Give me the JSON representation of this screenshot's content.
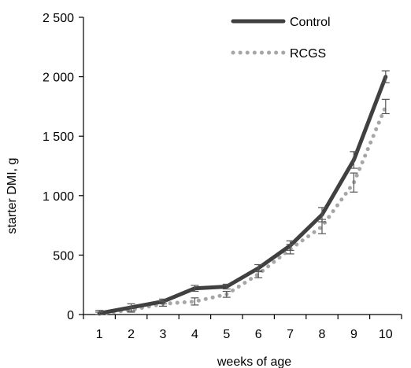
{
  "chart_data": {
    "type": "line",
    "xlabel": "weeks of age",
    "ylabel": "starter DMI, g",
    "categories": [
      "1",
      "2",
      "3",
      "4",
      "5",
      "6",
      "7",
      "8",
      "9",
      "10"
    ],
    "ylim": [
      0,
      2500
    ],
    "yticks": [
      0,
      500,
      1000,
      1500,
      2000,
      2500
    ],
    "ytick_labels": [
      "0",
      "500",
      "1 000",
      "1 500",
      "2 000",
      "2 500"
    ],
    "grid": false,
    "legend_position": "top-right",
    "series": [
      {
        "name": "Control",
        "style": "solid",
        "color": "#404040",
        "values": [
          10,
          60,
          110,
          220,
          235,
          390,
          580,
          840,
          1300,
          2000
        ],
        "errors": [
          25,
          30,
          20,
          25,
          20,
          30,
          40,
          60,
          70,
          50
        ]
      },
      {
        "name": "RCGS",
        "style": "dotted",
        "color": "#a6a6a6",
        "values": [
          5,
          40,
          90,
          110,
          170,
          340,
          550,
          740,
          1110,
          1750
        ],
        "errors": [
          15,
          20,
          20,
          30,
          25,
          30,
          40,
          60,
          80,
          60
        ]
      }
    ]
  }
}
